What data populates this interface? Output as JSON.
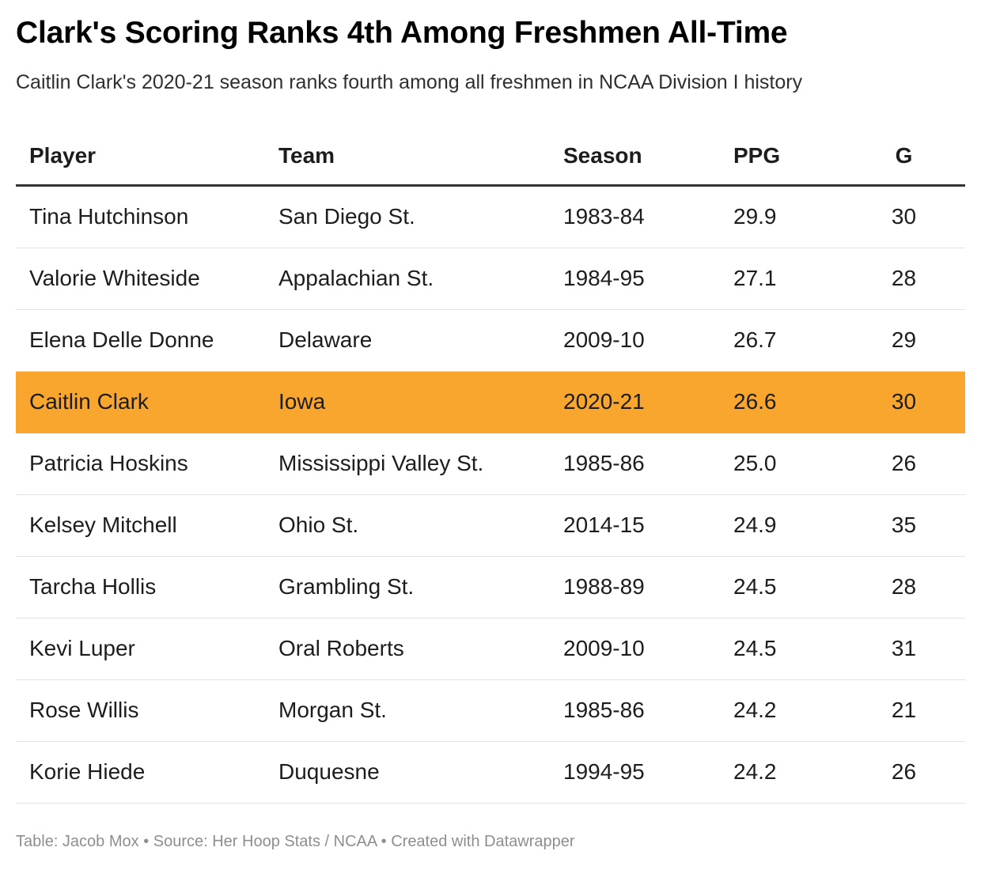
{
  "title": "Clark's Scoring Ranks 4th Among Freshmen All-Time",
  "subtitle": "Caitlin Clark's 2020-21 season ranks fourth among all freshmen in NCAA Division I history",
  "footer": "Table: Jacob Mox • Source: Her Hoop Stats / NCAA • Created with Datawrapper",
  "colors": {
    "highlight": "#f9a62e",
    "header_rule": "#333333",
    "row_divider": "#e3e3e3",
    "footer_text": "#8e8e8e"
  },
  "chart_data": {
    "type": "table",
    "title": "Clark's Scoring Ranks 4th Among Freshmen All-Time",
    "subtitle": "Caitlin Clark's 2020-21 season ranks fourth among all freshmen in NCAA Division I history",
    "columns": [
      "Player",
      "Team",
      "Season",
      "PPG",
      "G"
    ],
    "highlighted_row": 3,
    "rows": [
      [
        "Tina Hutchinson",
        "San Diego St.",
        "1983-84",
        "29.9",
        "30"
      ],
      [
        "Valorie Whiteside",
        "Appalachian St.",
        "1984-95",
        "27.1",
        "28"
      ],
      [
        "Elena Delle Donne",
        "Delaware",
        "2009-10",
        "26.7",
        "29"
      ],
      [
        "Caitlin Clark",
        "Iowa",
        "2020-21",
        "26.6",
        "30"
      ],
      [
        "Patricia Hoskins",
        "Mississippi Valley St.",
        "1985-86",
        "25.0",
        "26"
      ],
      [
        "Kelsey Mitchell",
        "Ohio St.",
        "2014-15",
        "24.9",
        "35"
      ],
      [
        "Tarcha Hollis",
        "Grambling St.",
        "1988-89",
        "24.5",
        "28"
      ],
      [
        "Kevi Luper",
        "Oral Roberts",
        "2009-10",
        "24.5",
        "31"
      ],
      [
        "Rose Willis",
        "Morgan St.",
        "1985-86",
        "24.2",
        "21"
      ],
      [
        "Korie Hiede",
        "Duquesne",
        "1994-95",
        "24.2",
        "26"
      ]
    ]
  }
}
